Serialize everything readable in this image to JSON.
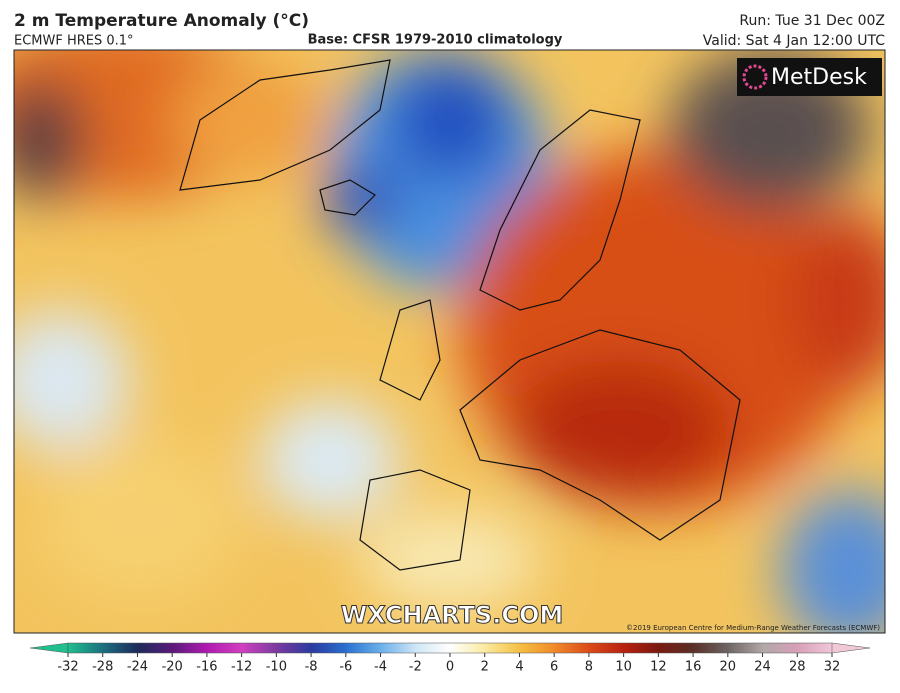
{
  "header": {
    "title": "2 m Temperature Anomaly (°C)",
    "model": "ECMWF HRES 0.1°",
    "base": "Base: CFSR 1979-2010 climatology",
    "run": "Run: Tue 31 Dec 00Z",
    "valid": "Valid: Sat 4 Jan 12:00 UTC"
  },
  "map": {
    "logo": "MetDesk",
    "watermark": "WXCHARTS.COM",
    "copyright": "©2019 European Centre for Medium-Range Weather Forecasts (ECMWF)"
  },
  "colorbar": {
    "ticks": [
      -32,
      -28,
      -24,
      -20,
      -16,
      -12,
      -10,
      -8,
      -6,
      -4,
      -2,
      0,
      2,
      4,
      6,
      8,
      10,
      12,
      16,
      20,
      24,
      28,
      32
    ],
    "colors": [
      "#1fbf8f",
      "#1a6f80",
      "#1d2a5a",
      "#5a1a7a",
      "#b01ab0",
      "#d040c0",
      "#7a3aa0",
      "#2a3aa0",
      "#2a70d0",
      "#6ab0ea",
      "#cfe6f6",
      "#ffffff",
      "#fbeaa0",
      "#f5c044",
      "#ef8a2a",
      "#dc4a18",
      "#b82010",
      "#7a1a10",
      "#5a3028",
      "#6e6464",
      "#b0a8a8",
      "#d8a0b8",
      "#f0c8d8"
    ]
  }
}
